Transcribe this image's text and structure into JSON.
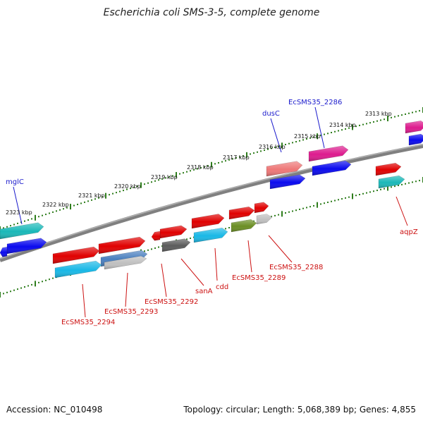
{
  "title": "Escherichia coli SMS-3-5, complete genome",
  "footer": {
    "accession": "Accession: NC_010498",
    "summary": "Topology: circular; Length: 5,068,389 bp; Genes: 4,855"
  },
  "ruler_labels": [
    "2313 kbp",
    "2314 kbp",
    "2315 kbp",
    "2316 kbp",
    "2317 kbp",
    "2318 kbp",
    "2319 kbp",
    "2320 kbp",
    "2321 kbp",
    "2322 kbp",
    "2323 kbp"
  ],
  "gene_labels_outer": [
    "EcSMS35_2286",
    "dusC",
    "mglC"
  ],
  "gene_labels_inner": [
    "aqpZ",
    "EcSMS35_2288",
    "EcSMS35_2289",
    "cdd",
    "sanA",
    "EcSMS35_2292",
    "EcSMS35_2293",
    "EcSMS35_2294"
  ],
  "colors": {
    "backbone": "#808080",
    "ticks": "#2e7d1c",
    "outer_label": "#1a1acc",
    "inner_label": "#cc1111",
    "cds_red": "#e00000",
    "cds_cyan": "#19b8e6",
    "cds_blue": "#0a0aee",
    "cds_teal": "#1ab8b8",
    "cds_magenta": "#dd1b8e",
    "cds_salmon": "#ee7777",
    "cds_olive": "#6b8e23",
    "cds_grey": "#5c5c5c",
    "cds_silver": "#c0c0c0",
    "cds_steel": "#4a7fbf"
  }
}
